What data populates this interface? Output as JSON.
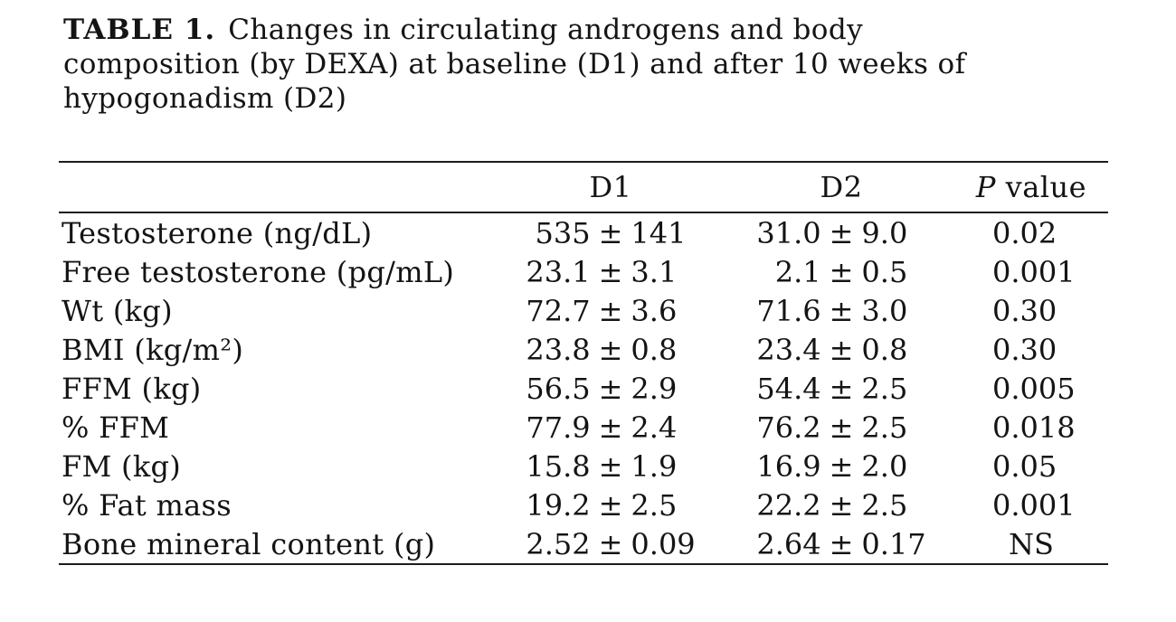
{
  "title": {
    "label": "TABLE 1.",
    "line1_rest": "Changes in circulating androgens and body",
    "line2": "composition (by DEXA) at baseline (D1) and after 10 weeks of",
    "line3": "hypogonadism (D2)"
  },
  "table": {
    "plus_minus": "±",
    "headers": {
      "metric": "",
      "d1": "D1",
      "d2": "D2",
      "p_italic": "P",
      "p_rest": " value"
    },
    "rows": [
      {
        "label": "Testosterone (ng/dL)",
        "d1_val": "535",
        "d1_err": "141",
        "d2_val": "31.0",
        "d2_err": "9.0",
        "p": "0.02"
      },
      {
        "label": "Free testosterone (pg/mL)",
        "d1_val": "23.1",
        "d1_err": "3.1",
        "d2_val": "2.1",
        "d2_err": "0.5",
        "p": "0.001"
      },
      {
        "label": "Wt (kg)",
        "d1_val": "72.7",
        "d1_err": "3.6",
        "d2_val": "71.6",
        "d2_err": "3.0",
        "p": "0.30"
      },
      {
        "label": "BMI (kg/m²)",
        "d1_val": "23.8",
        "d1_err": "0.8",
        "d2_val": "23.4",
        "d2_err": "0.8",
        "p": "0.30"
      },
      {
        "label": "FFM (kg)",
        "d1_val": "56.5",
        "d1_err": "2.9",
        "d2_val": "54.4",
        "d2_err": "2.5",
        "p": "0.005"
      },
      {
        "label": "% FFM",
        "d1_val": "77.9",
        "d1_err": "2.4",
        "d2_val": "76.2",
        "d2_err": "2.5",
        "p": "0.018"
      },
      {
        "label": "FM (kg)",
        "d1_val": "15.8",
        "d1_err": "1.9",
        "d2_val": "16.9",
        "d2_err": "2.0",
        "p": "0.05"
      },
      {
        "label": "% Fat mass",
        "d1_val": "19.2",
        "d1_err": "2.5",
        "d2_val": "22.2",
        "d2_err": "2.5",
        "p": "0.001"
      },
      {
        "label": "Bone mineral content (g)",
        "d1_val": "2.52",
        "d1_err": "0.09",
        "d2_val": "2.64",
        "d2_err": "0.17",
        "p": "NS"
      }
    ]
  }
}
